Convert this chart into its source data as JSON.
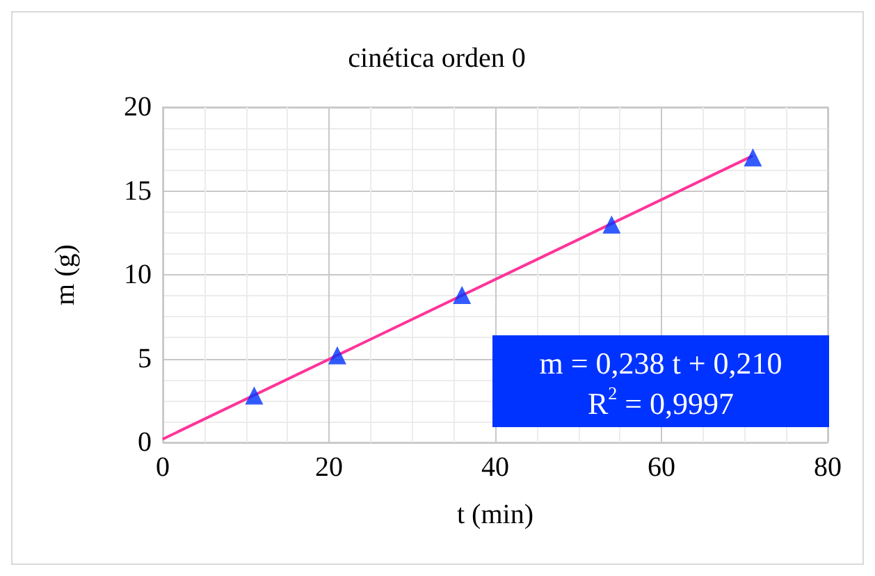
{
  "chart_data": {
    "type": "scatter",
    "title": "cinética orden 0",
    "xlabel": "t (min)",
    "ylabel": "m (g)",
    "xlim": [
      0,
      80
    ],
    "xticks": [
      0,
      20,
      40,
      60,
      80
    ],
    "ylim": [
      0,
      20
    ],
    "yticks": [
      0,
      5,
      10,
      15,
      20
    ],
    "grid": true,
    "marker": "triangle",
    "series": [
      {
        "color": "#0033ff",
        "x": [
          11,
          21,
          36,
          54,
          71
        ],
        "values": [
          2.8,
          5.2,
          8.8,
          13.0,
          17.0
        ]
      },
      {
        "type": "line",
        "color": "#ff3399",
        "x": [
          0,
          71
        ],
        "values": [
          0.2,
          17.1
        ],
        "marker": "none"
      }
    ],
    "annotations": [
      "m = 0,238 t + 0,210",
      "R$^{2}$ = 0,9997"
    ]
  }
}
